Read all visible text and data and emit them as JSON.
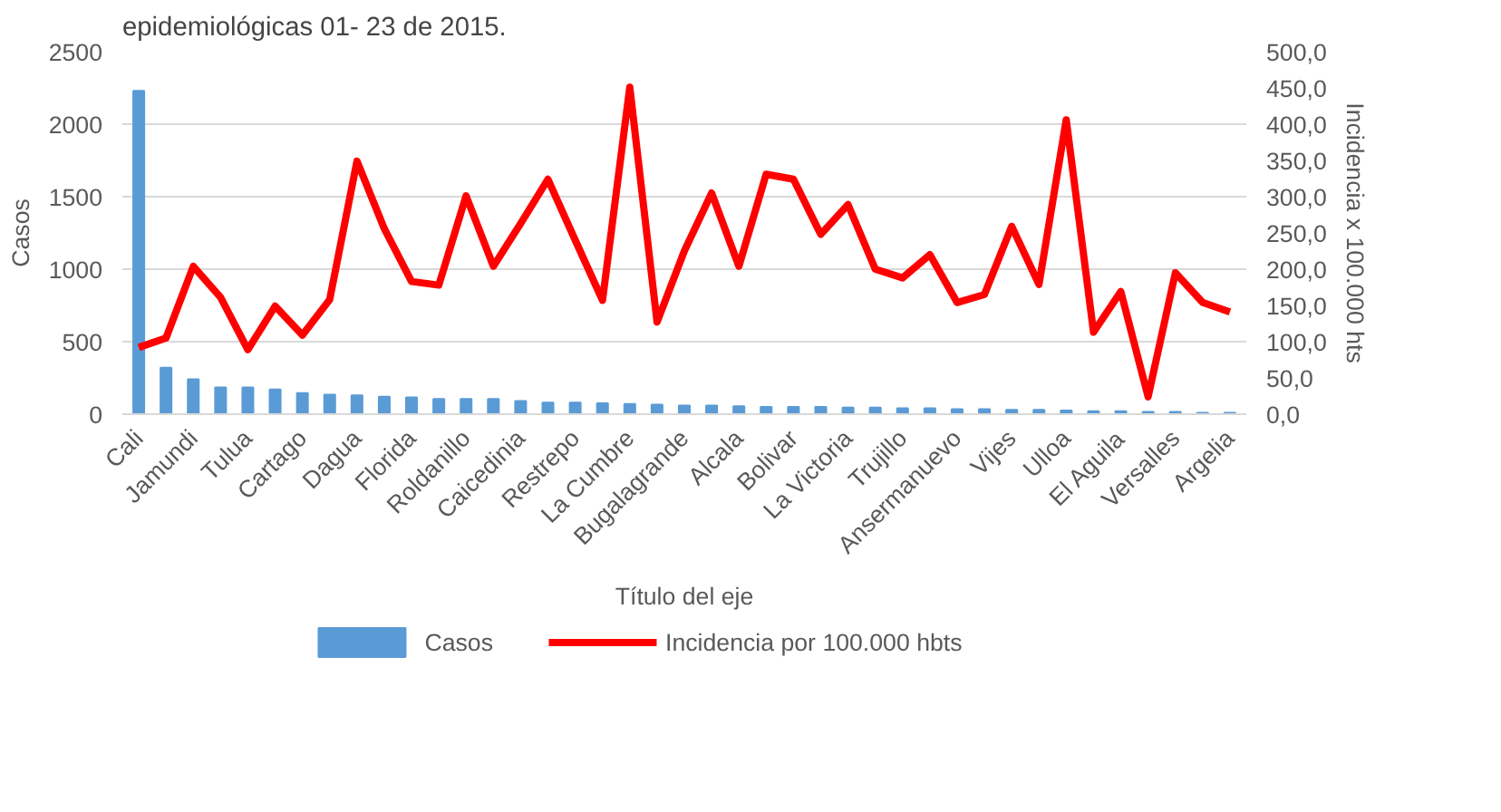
{
  "chart_data": {
    "type": "bar",
    "title": "epidemiológicas 01- 23 de 2015.",
    "xlabel": "Título del eje",
    "ylabel": "Casos",
    "y2label": "Incidencia x 100.000 hts",
    "categories": [
      "Cali",
      null,
      "Jamundi",
      null,
      "Tulua",
      null,
      "Cartago",
      null,
      "Dagua",
      null,
      "Florida",
      null,
      "Roldanillo",
      null,
      "Caicedinia",
      null,
      "Restrepo",
      null,
      "La Cumbre",
      null,
      "Bugalagrande",
      null,
      "Alcala",
      null,
      "Bolivar",
      null,
      "La Victoria",
      null,
      "Trujillo",
      null,
      "Ansermanuevo",
      null,
      "Vijes",
      null,
      "Ulloa",
      null,
      "El Aguila",
      null,
      "Versalles",
      null,
      "Argelia"
    ],
    "series": [
      {
        "name": "Casos",
        "color": "#5b9bd5",
        "values": [
          2230,
          320,
          240,
          185,
          185,
          170,
          145,
          135,
          130,
          120,
          115,
          105,
          105,
          105,
          90,
          80,
          80,
          75,
          70,
          65,
          60,
          60,
          55,
          50,
          50,
          50,
          45,
          45,
          40,
          40,
          35,
          35,
          30,
          30,
          25,
          20,
          20,
          15,
          15,
          10,
          10
        ]
      },
      {
        "name": "Incidencia por 100.000 hbts",
        "type": "line",
        "axis": "y2",
        "color": "#ff0000",
        "values": [
          92,
          105,
          204,
          161,
          89,
          149,
          109,
          158,
          349,
          256,
          183,
          178,
          301,
          204,
          263,
          324,
          240,
          157,
          451,
          127,
          225,
          305,
          204,
          331,
          324,
          248,
          289,
          200,
          188,
          220,
          154,
          165,
          259,
          179,
          406,
          113,
          169,
          24,
          195,
          154,
          141
        ]
      }
    ],
    "ylim": [
      0,
      2500
    ],
    "yticks": [
      0,
      500,
      1000,
      1500,
      2000,
      2500
    ],
    "y2lim": [
      0,
      500
    ],
    "y2ticks": [
      {
        "value": 0,
        "label": "0,0"
      },
      {
        "value": 50,
        "label": "50,0"
      },
      {
        "value": 100,
        "label": "100,0"
      },
      {
        "value": 150,
        "label": "150,0"
      },
      {
        "value": 200,
        "label": "200,0"
      },
      {
        "value": 250,
        "label": "250,0"
      },
      {
        "value": 300,
        "label": "300,0"
      },
      {
        "value": 350,
        "label": "350,0"
      },
      {
        "value": 400,
        "label": "400,0"
      },
      {
        "value": 450,
        "label": "450,0"
      },
      {
        "value": 500,
        "label": "500,0"
      }
    ],
    "grid": "y",
    "legend": "bottom",
    "marker": "none",
    "line_style": "solid"
  }
}
